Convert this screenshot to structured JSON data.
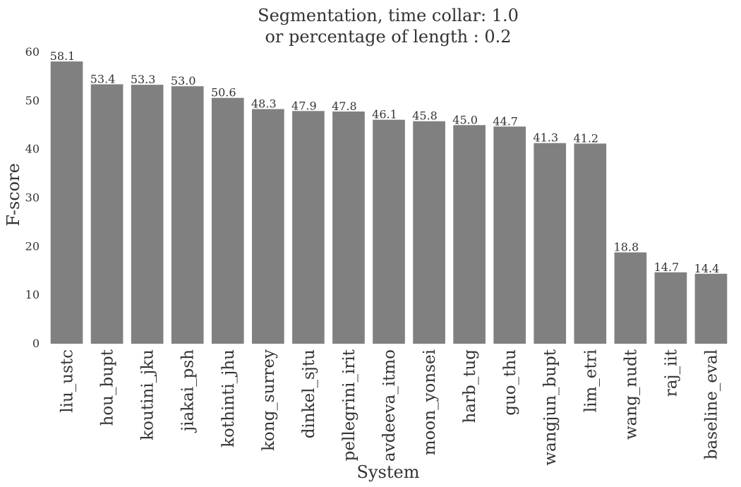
{
  "chart_data": {
    "type": "bar",
    "title": "Segmentation, time collar: 1.0",
    "subtitle": "or percentage of length : 0.2",
    "xlabel": "System",
    "ylabel": "F-score",
    "ylim": [
      0,
      60
    ],
    "yticks": [
      "0",
      "10",
      "20",
      "30",
      "40",
      "50",
      "60"
    ],
    "grid": false,
    "bar_color": "#808080",
    "categories": [
      "liu_ustc",
      "hou_bupt",
      "koutini_jku",
      "jiakai_psh",
      "kothinti_jhu",
      "kong_surrey",
      "dinkel_sjtu",
      "pellegrini_irit",
      "avdeeva_itmo",
      "moon_yonsei",
      "harb_tug",
      "guo_thu",
      "wangjun_bupt",
      "lim_etri",
      "wang_nudt",
      "raj_iit",
      "baseline_eval"
    ],
    "values": [
      58.1,
      53.4,
      53.3,
      53.0,
      50.6,
      48.3,
      47.9,
      47.8,
      46.1,
      45.8,
      45.0,
      44.7,
      41.3,
      41.2,
      18.8,
      14.7,
      14.4
    ],
    "value_labels": [
      "58.1",
      "53.4",
      "53.3",
      "53.0",
      "50.6",
      "48.3",
      "47.9",
      "47.8",
      "46.1",
      "45.8",
      "45.0",
      "44.7",
      "41.3",
      "41.2",
      "18.8",
      "14.7",
      "14.4"
    ]
  }
}
